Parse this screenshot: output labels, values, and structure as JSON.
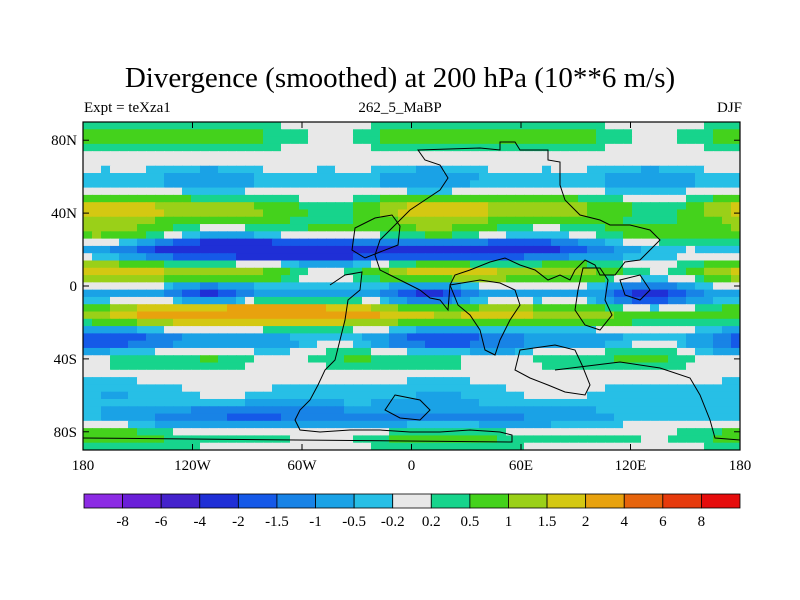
{
  "chart_data": {
    "type": "heatmap",
    "title": "Divergence (smoothed) at 200 hPa (10**6 m/s)",
    "subtitle_left": "Expt = teXza1",
    "subtitle_center": "262_5_MaBP",
    "subtitle_right": "DJF",
    "x_ticks": [
      "180",
      "120W",
      "60W",
      "0",
      "60E",
      "120E",
      "180"
    ],
    "y_ticks": [
      "80N",
      "40N",
      "0",
      "40S",
      "80S"
    ],
    "xlim": [
      -180,
      180
    ],
    "ylim": [
      -90,
      90
    ],
    "colorbar_labels": [
      "-8",
      "-6",
      "-4",
      "-2",
      "-1.5",
      "-1",
      "-0.5",
      "-0.2",
      "0.2",
      "0.5",
      "1",
      "1.5",
      "2",
      "4",
      "6",
      "8"
    ],
    "colorbar_colors": [
      "#8c2be4",
      "#6a1fd8",
      "#4422cc",
      "#1f2fd6",
      "#1559e8",
      "#1883e6",
      "#1aa2e6",
      "#27bfe6",
      "#e8e8e8",
      "#17d48c",
      "#44d21c",
      "#9ad018",
      "#d4c812",
      "#e8a20e",
      "#e6640c",
      "#e63a0c",
      "#e60c0c"
    ],
    "bands": [
      {
        "lat": 82,
        "amp": 0.6,
        "wave": 2,
        "phase": 0.3
      },
      {
        "lat": 58,
        "amp": -0.6,
        "wave": 3,
        "phase": 1.1
      },
      {
        "lat": 42,
        "amp": 1.2,
        "wave": 2,
        "phase": 0.5
      },
      {
        "lat": 28,
        "amp": 0.8,
        "wave": 2,
        "phase": 1.7
      },
      {
        "lat": 20,
        "amp": -2.3,
        "wave": 1,
        "phase": 2.2
      },
      {
        "lat": 8,
        "amp": 1.3,
        "wave": 2,
        "phase": 0.2
      },
      {
        "lat": -5,
        "amp": -1.4,
        "wave": 3,
        "phase": 1.0
      },
      {
        "lat": -15,
        "amp": 2.0,
        "wave": 1,
        "phase": 2.8
      },
      {
        "lat": -30,
        "amp": -1.2,
        "wave": 2,
        "phase": 0.6
      },
      {
        "lat": -38,
        "amp": 0.5,
        "wave": 3,
        "phase": 2.0
      },
      {
        "lat": -58,
        "amp": -0.3,
        "wave": 2,
        "phase": 1.5
      },
      {
        "lat": -72,
        "amp": -1.0,
        "wave": 1,
        "phase": 2.4
      },
      {
        "lat": -82,
        "amp": 0.5,
        "wave": 2,
        "phase": 0.8
      }
    ]
  }
}
